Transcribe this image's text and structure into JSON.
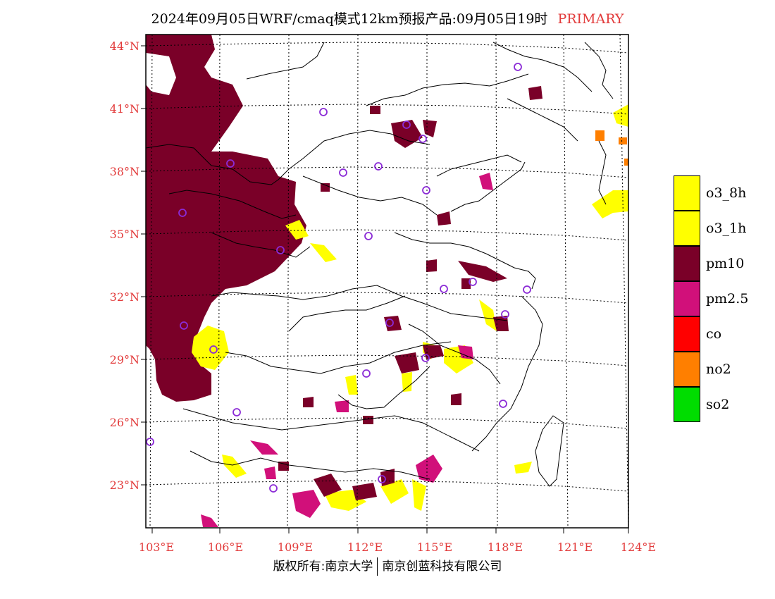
{
  "title": {
    "text": "2024年09月05日WRF/cmaq模式12km预报产品:09月05日19时",
    "tag": "PRIMARY"
  },
  "axes": {
    "lat_labels": [
      "44°N",
      "41°N",
      "38°N",
      "35°N",
      "32°N",
      "29°N",
      "26°N",
      "23°N"
    ],
    "lon_labels": [
      "103°E",
      "106°E",
      "109°E",
      "112°E",
      "115°E",
      "118°E",
      "121°E",
      "124°E"
    ]
  },
  "legend": {
    "items": [
      {
        "label": "o3_8h",
        "color": "#ffff00"
      },
      {
        "label": "o3_1h",
        "color": "#ffff00"
      },
      {
        "label": "pm10",
        "color": "#7a0028"
      },
      {
        "label": "pm2.5",
        "color": "#d1107a"
      },
      {
        "label": "co",
        "color": "#ff0000"
      },
      {
        "label": "no2",
        "color": "#ff7f00"
      },
      {
        "label": "so2",
        "color": "#00dd00"
      }
    ]
  },
  "credit": {
    "left": "版权所有:南京大学",
    "right": "南京创蓝科技有限公司"
  }
}
